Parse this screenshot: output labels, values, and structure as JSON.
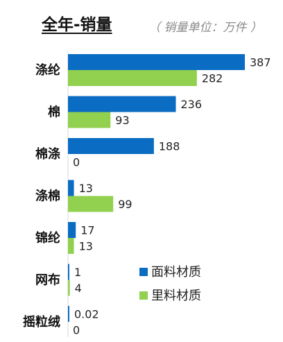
{
  "title": "全年-销量",
  "subtitle": "（ 销量单位：万件 ）",
  "colors": {
    "series_1": "#0A6CC2",
    "series_2": "#92D050"
  },
  "chart_data": {
    "type": "bar",
    "orientation": "horizontal",
    "categories": [
      "涤纶",
      "棉",
      "棉涤",
      "涤棉",
      "锦纶",
      "网布",
      "摇粒绒"
    ],
    "series": [
      {
        "name": "面料材质",
        "values": [
          387,
          236,
          188,
          13,
          17,
          1,
          0.02
        ],
        "labels": [
          "387",
          "236",
          "188",
          "13",
          "17",
          "1",
          "0.02"
        ]
      },
      {
        "name": "里料材质",
        "values": [
          282,
          93,
          0,
          99,
          13,
          4,
          0
        ],
        "labels": [
          "282",
          "93",
          "0",
          "99",
          "13",
          "4",
          "0"
        ]
      }
    ],
    "legend_position": "lower-right",
    "grid": false
  }
}
